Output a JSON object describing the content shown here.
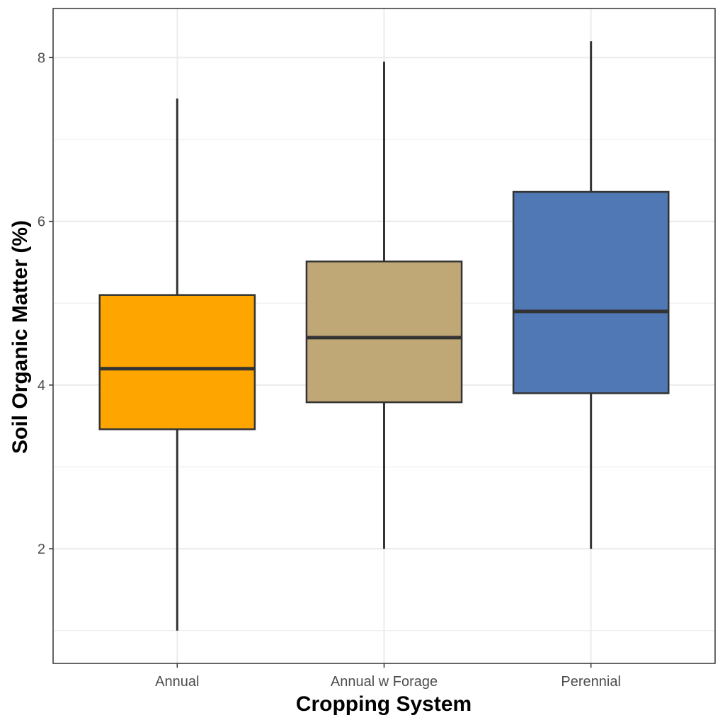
{
  "chart_data": {
    "type": "boxplot",
    "xlabel": "Cropping System",
    "ylabel": "Soil Organic Matter (%)",
    "categories": [
      "Annual",
      "Annual w Forage",
      "Perennial"
    ],
    "boxes": [
      {
        "category": "Annual",
        "min": 1.0,
        "q1": 3.46,
        "median": 4.2,
        "q3": 5.1,
        "max": 7.5,
        "color": "#FFA500"
      },
      {
        "category": "Annual w Forage",
        "min": 2.0,
        "q1": 3.79,
        "median": 4.58,
        "q3": 5.51,
        "max": 7.95,
        "color": "#C0A876"
      },
      {
        "category": "Perennial",
        "min": 2.0,
        "q1": 3.9,
        "median": 4.9,
        "q3": 6.36,
        "max": 8.2,
        "color": "#4F78B5"
      }
    ],
    "yticks": [
      "2",
      "4",
      "6",
      "8"
    ],
    "ylim": [
      0.6,
      8.6
    ],
    "grid": true,
    "legend": "none",
    "colors": {
      "outline": "#333333",
      "grid": "#EBEBEB",
      "panel_border": "#333333"
    }
  }
}
